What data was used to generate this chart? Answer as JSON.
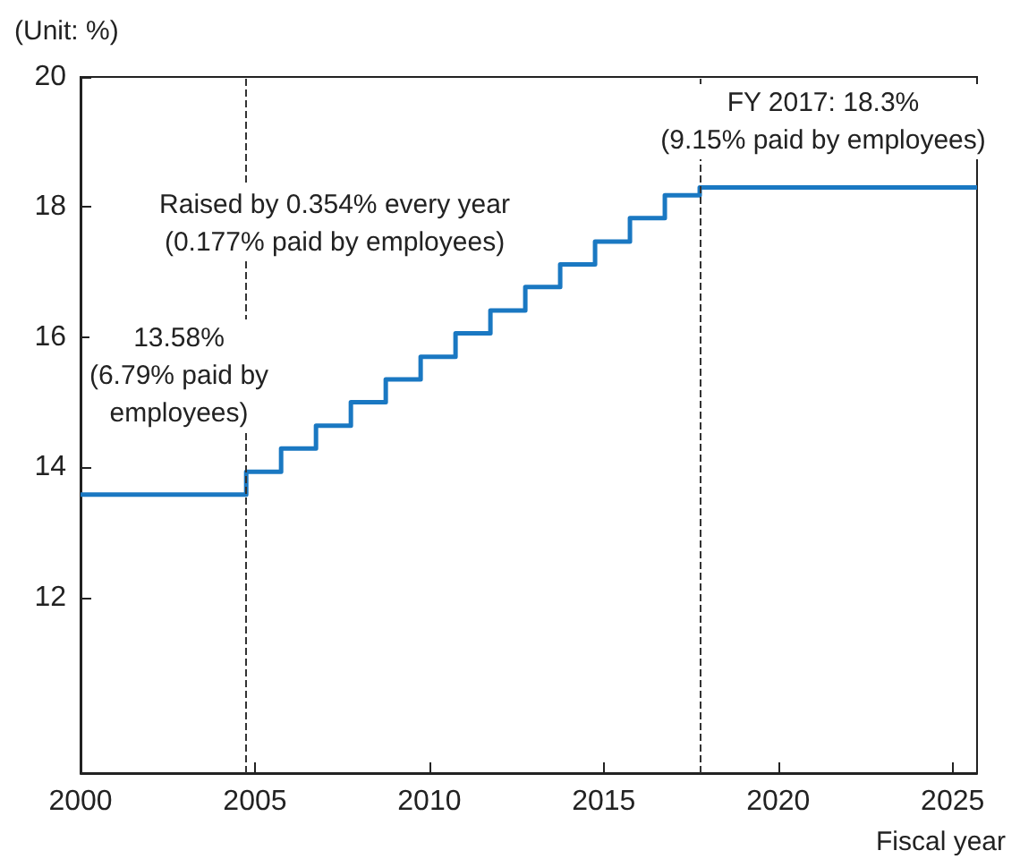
{
  "chart_data": {
    "type": "step",
    "ylabel": "(Unit: %)",
    "xlabel": "Fiscal year",
    "x": [
      2000,
      2004.75,
      2005.75,
      2006.75,
      2007.75,
      2008.75,
      2009.75,
      2010.75,
      2011.75,
      2012.75,
      2013.75,
      2014.75,
      2015.75,
      2016.75,
      2017.75,
      2025.7
    ],
    "series": [
      {
        "color": "#1a78c2",
        "values": [
          13.58,
          13.93,
          14.29,
          14.64,
          15.0,
          15.35,
          15.7,
          16.06,
          16.41,
          16.77,
          17.12,
          17.47,
          17.83,
          18.18,
          18.3,
          18.3
        ]
      }
    ],
    "xlim": [
      2000,
      2025.7
    ],
    "xticks": [
      2000,
      2005,
      2010,
      2015,
      2020,
      2025
    ],
    "ylim": [
      9.3,
      20
    ],
    "yticks": [
      12,
      14,
      16,
      18,
      20
    ],
    "ref_lines": [
      {
        "axis": "x",
        "value": 2004.75,
        "line_style": "dashed",
        "color": "#333333"
      },
      {
        "axis": "x",
        "value": 2017.75,
        "line_style": "dashed",
        "color": "#333333"
      }
    ],
    "annotations": [
      "FY 2017: 18.3%\n(9.15% paid by employees)",
      "Raised by 0.354% every year\n(0.177% paid by employees)",
      "13.58%\n(6.79% paid by\nemployees)"
    ],
    "grid": false,
    "line_style": "solid",
    "marker": "none"
  }
}
